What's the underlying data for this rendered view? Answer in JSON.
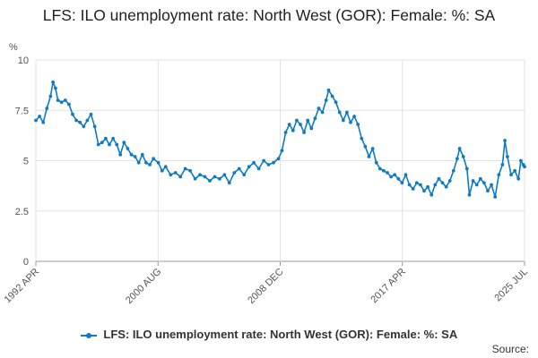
{
  "chart_data": {
    "type": "line",
    "title": "LFS: ILO unemployment rate: North West (GOR): Female: %: SA",
    "ylabel": "%",
    "xlabel": "",
    "ylim": [
      0,
      10
    ],
    "yticks": [
      "0",
      "2.5",
      "5",
      "7.5",
      "10"
    ],
    "x_tick_labels": [
      "1992 APR",
      "2000 AUG",
      "2008 DEC",
      "2017 APR",
      "2025 JUL"
    ],
    "grid": true,
    "legend_position": "bottom",
    "series": [
      {
        "name": "LFS: ILO unemployment rate: North West (GOR): Female: %: SA",
        "color": "#0F7BC1",
        "points": [
          [
            "1992-04",
            7.0
          ],
          [
            "1992-07",
            7.2
          ],
          [
            "1992-10",
            6.9
          ],
          [
            "1993-01",
            7.6
          ],
          [
            "1993-04",
            8.2
          ],
          [
            "1993-06",
            8.9
          ],
          [
            "1993-08",
            8.6
          ],
          [
            "1993-10",
            8.0
          ],
          [
            "1994-01",
            7.9
          ],
          [
            "1994-04",
            8.0
          ],
          [
            "1994-07",
            7.8
          ],
          [
            "1994-10",
            7.3
          ],
          [
            "1995-01",
            7.0
          ],
          [
            "1995-04",
            6.9
          ],
          [
            "1995-07",
            6.7
          ],
          [
            "1995-10",
            7.0
          ],
          [
            "1996-01",
            7.3
          ],
          [
            "1996-04",
            6.7
          ],
          [
            "1996-07",
            5.8
          ],
          [
            "1996-10",
            5.9
          ],
          [
            "1997-01",
            6.1
          ],
          [
            "1997-04",
            5.8
          ],
          [
            "1997-07",
            6.1
          ],
          [
            "1997-10",
            5.8
          ],
          [
            "1998-01",
            5.3
          ],
          [
            "1998-04",
            5.9
          ],
          [
            "1998-07",
            5.6
          ],
          [
            "1998-10",
            5.3
          ],
          [
            "1999-01",
            5.2
          ],
          [
            "1999-04",
            4.9
          ],
          [
            "1999-07",
            5.3
          ],
          [
            "1999-10",
            4.9
          ],
          [
            "2000-01",
            4.8
          ],
          [
            "2000-04",
            5.1
          ],
          [
            "2000-08",
            4.9
          ],
          [
            "2000-11",
            4.5
          ],
          [
            "2001-02",
            4.7
          ],
          [
            "2001-06",
            4.3
          ],
          [
            "2001-10",
            4.4
          ],
          [
            "2002-02",
            4.2
          ],
          [
            "2002-06",
            4.6
          ],
          [
            "2002-10",
            4.5
          ],
          [
            "2003-02",
            4.1
          ],
          [
            "2003-06",
            4.3
          ],
          [
            "2003-10",
            4.2
          ],
          [
            "2004-02",
            4.0
          ],
          [
            "2004-06",
            4.2
          ],
          [
            "2004-10",
            4.1
          ],
          [
            "2005-02",
            4.3
          ],
          [
            "2005-06",
            3.9
          ],
          [
            "2005-10",
            4.4
          ],
          [
            "2006-02",
            4.6
          ],
          [
            "2006-06",
            4.3
          ],
          [
            "2006-10",
            4.7
          ],
          [
            "2007-02",
            4.9
          ],
          [
            "2007-06",
            4.6
          ],
          [
            "2007-10",
            5.0
          ],
          [
            "2008-02",
            4.8
          ],
          [
            "2008-06",
            4.9
          ],
          [
            "2008-10",
            5.1
          ],
          [
            "2009-01",
            5.5
          ],
          [
            "2009-04",
            6.4
          ],
          [
            "2009-07",
            6.8
          ],
          [
            "2009-10",
            6.5
          ],
          [
            "2010-01",
            7.0
          ],
          [
            "2010-04",
            6.8
          ],
          [
            "2010-07",
            6.4
          ],
          [
            "2010-10",
            7.0
          ],
          [
            "2011-01",
            6.6
          ],
          [
            "2011-04",
            7.1
          ],
          [
            "2011-07",
            7.6
          ],
          [
            "2011-10",
            7.4
          ],
          [
            "2012-01",
            8.0
          ],
          [
            "2012-03",
            8.5
          ],
          [
            "2012-06",
            8.2
          ],
          [
            "2012-09",
            7.9
          ],
          [
            "2012-12",
            7.4
          ],
          [
            "2013-03",
            7.0
          ],
          [
            "2013-06",
            7.4
          ],
          [
            "2013-09",
            6.9
          ],
          [
            "2013-12",
            7.2
          ],
          [
            "2014-03",
            6.8
          ],
          [
            "2014-06",
            6.1
          ],
          [
            "2014-09",
            5.7
          ],
          [
            "2014-12",
            5.2
          ],
          [
            "2015-03",
            5.6
          ],
          [
            "2015-06",
            4.9
          ],
          [
            "2015-09",
            4.6
          ],
          [
            "2015-12",
            4.5
          ],
          [
            "2016-03",
            4.4
          ],
          [
            "2016-06",
            4.2
          ],
          [
            "2016-09",
            4.3
          ],
          [
            "2016-12",
            4.1
          ],
          [
            "2017-03",
            3.9
          ],
          [
            "2017-06",
            4.3
          ],
          [
            "2017-09",
            3.8
          ],
          [
            "2017-12",
            3.6
          ],
          [
            "2018-03",
            3.9
          ],
          [
            "2018-06",
            3.8
          ],
          [
            "2018-09",
            3.5
          ],
          [
            "2018-12",
            3.7
          ],
          [
            "2019-03",
            3.3
          ],
          [
            "2019-06",
            3.8
          ],
          [
            "2019-09",
            4.1
          ],
          [
            "2019-12",
            3.9
          ],
          [
            "2020-03",
            3.7
          ],
          [
            "2020-06",
            4.0
          ],
          [
            "2020-09",
            4.5
          ],
          [
            "2020-12",
            5.1
          ],
          [
            "2021-02",
            5.6
          ],
          [
            "2021-05",
            5.2
          ],
          [
            "2021-08",
            4.6
          ],
          [
            "2021-10",
            3.3
          ],
          [
            "2022-01",
            4.0
          ],
          [
            "2022-04",
            3.8
          ],
          [
            "2022-07",
            4.1
          ],
          [
            "2022-10",
            3.9
          ],
          [
            "2023-01",
            3.5
          ],
          [
            "2023-04",
            3.8
          ],
          [
            "2023-07",
            3.2
          ],
          [
            "2023-10",
            4.3
          ],
          [
            "2024-01",
            4.8
          ],
          [
            "2024-03",
            6.0
          ],
          [
            "2024-05",
            5.2
          ],
          [
            "2024-08",
            4.3
          ],
          [
            "2024-11",
            4.5
          ],
          [
            "2025-02",
            4.1
          ],
          [
            "2025-04",
            5.0
          ],
          [
            "2025-06",
            4.8
          ],
          [
            "2025-07",
            4.7
          ]
        ]
      }
    ]
  },
  "legend": {
    "label": "LFS: ILO unemployment rate: North West (GOR): Female: %: SA"
  },
  "source_label": "Source:"
}
